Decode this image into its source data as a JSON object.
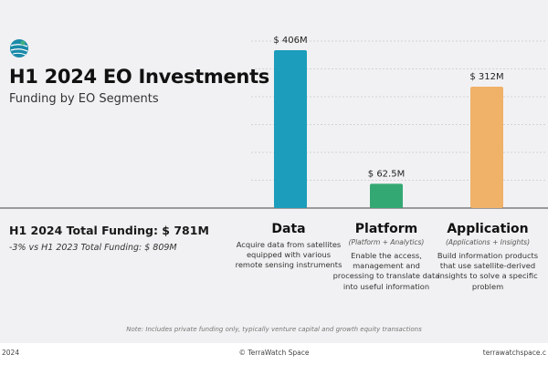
{
  "header": {
    "logo_icon": "terrawatch-globe-icon",
    "title": "H1 2024 EO Investments",
    "subtitle": "Funding by EO Segments"
  },
  "summary": {
    "total_funding": "H1 2024 Total Funding: $ 781M",
    "comparison": "-3% vs H1 2023 Total Funding: $ 809M"
  },
  "segments": [
    {
      "name": "Data",
      "subtitle": "",
      "description": "Acquire data from satellites equipped with various remote sensing instruments"
    },
    {
      "name": "Platform",
      "subtitle": "(Platform + Analytics)",
      "description": "Enable the access, management and processing to translate data into useful information"
    },
    {
      "name": "Application",
      "subtitle": "(Applications + Insights)",
      "description": "Build information products that use satellite-derived insights to solve a specific problem"
    }
  ],
  "chart_data": {
    "type": "bar",
    "categories": [
      "Data",
      "Platform",
      "Application"
    ],
    "values": [
      406,
      62.5,
      312
    ],
    "data_labels": [
      "$ 406M",
      "$ 62.5M",
      "$ 312M"
    ],
    "unit": "$M",
    "colors": [
      "#1b9dbb",
      "#34a873",
      "#f0b169"
    ],
    "ylim": [
      0,
      406
    ],
    "grid": true
  },
  "note": "Note: Includes private funding only, typically venture capital and growth equity transactions",
  "footer": {
    "left": "2024",
    "center": "© TerraWatch Space",
    "right": "terrawatchspace.c"
  }
}
